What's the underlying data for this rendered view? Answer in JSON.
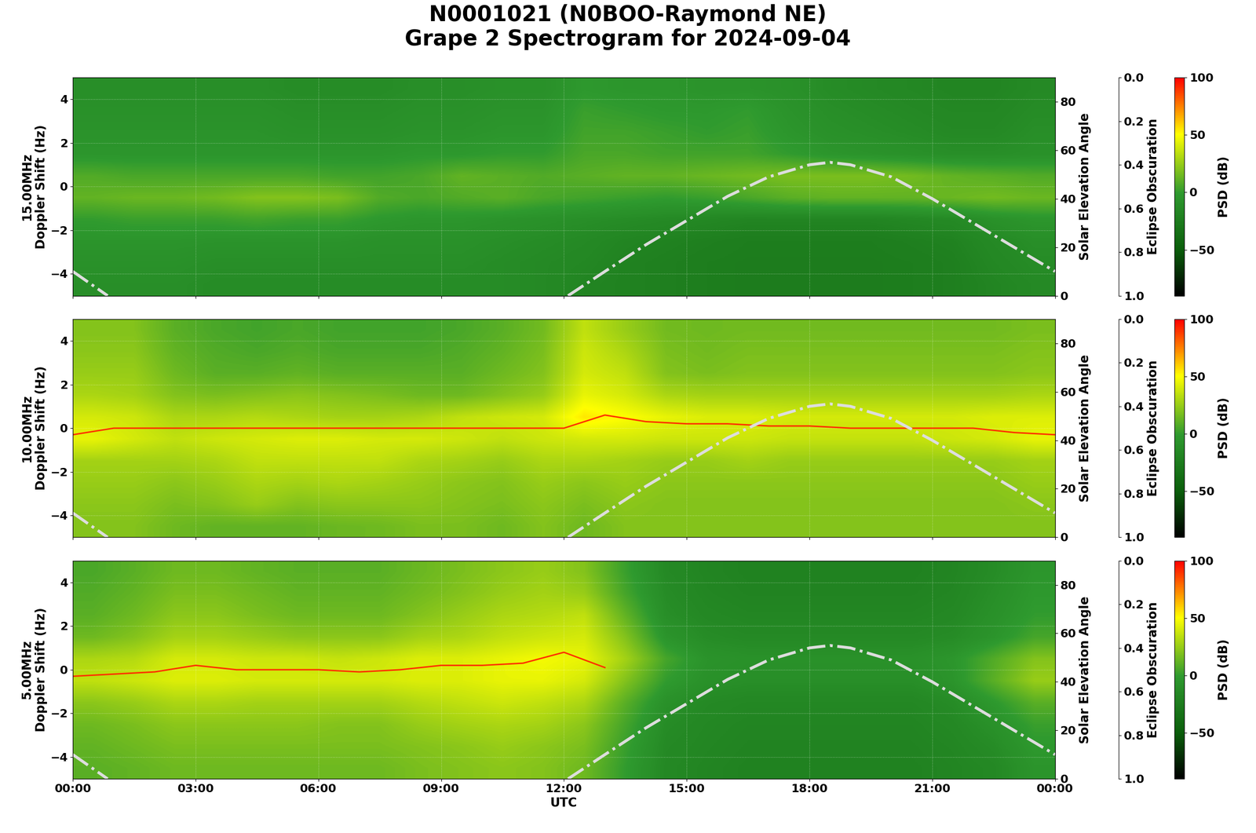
{
  "chart_data": {
    "type": "spectrogram",
    "title": "N0001021 (N0BOO-Raymond NE)\nGrape 2 Spectrogram for 2024-09-04",
    "xlabel": "UTC",
    "xlim": [
      0,
      24
    ],
    "xticks": [
      {
        "value": 0,
        "label": "00:00"
      },
      {
        "value": 3,
        "label": "03:00"
      },
      {
        "value": 6,
        "label": "06:00"
      },
      {
        "value": 9,
        "label": "09:00"
      },
      {
        "value": 12,
        "label": "12:00"
      },
      {
        "value": 15,
        "label": "15:00"
      },
      {
        "value": 18,
        "label": "18:00"
      },
      {
        "value": 21,
        "label": "21:00"
      },
      {
        "value": 24,
        "label": "00:00"
      }
    ],
    "ylim": [
      -5,
      5
    ],
    "yticks": [
      {
        "value": -4,
        "label": "−4"
      },
      {
        "value": -2,
        "label": "−2"
      },
      0,
      2,
      4
    ],
    "grid": true,
    "time_bins": [
      0,
      1,
      2,
      3,
      4,
      5,
      6,
      7,
      8,
      9,
      10,
      11,
      12,
      13,
      14,
      15,
      16,
      17,
      18,
      19,
      20,
      21,
      22,
      23,
      24
    ],
    "doppler_bins": [
      -5,
      -4,
      -3,
      -2,
      -1,
      0,
      1,
      2,
      3,
      4,
      5
    ],
    "colorbar": {
      "label": "PSD (dB)",
      "lim": [
        -90,
        100
      ],
      "ticks": [
        {
          "value": -50,
          "label": "−50"
        },
        0,
        50,
        100
      ]
    },
    "solar": {
      "label": "Solar Elevation Angle",
      "y2lim": [
        0,
        90
      ],
      "y2ticks": [
        0,
        20,
        40,
        60,
        80
      ],
      "color": "#dddddd",
      "line_style": "dashdot",
      "x": [
        0,
        0.85,
        6,
        12.1,
        13,
        14,
        15,
        16,
        17,
        18,
        18.5,
        19,
        20,
        21,
        22,
        23,
        24
      ],
      "values": [
        10,
        0,
        null,
        0,
        10,
        21,
        31,
        41,
        49,
        54,
        55,
        54,
        49,
        40,
        30,
        20,
        10
      ]
    },
    "obscuration": {
      "label": "Eclipse Obscuration",
      "lim": [
        1.0,
        0.0
      ],
      "ticks": [
        0.0,
        0.2,
        0.4,
        0.6,
        0.8,
        1.0
      ]
    },
    "panels": [
      {
        "ylabel": "15.00MHz\nDoppler Shift (Hz)",
        "cells": [
          [
            -10,
            -10,
            -10,
            -12,
            -12,
            -12,
            -12,
            -12,
            -12,
            -12,
            -12,
            -14,
            -18,
            -20,
            -22,
            -24,
            -25,
            -25,
            -25,
            -25,
            -24,
            -22,
            -18,
            -14
          ],
          [
            -8,
            -8,
            -8,
            -10,
            -10,
            -10,
            -10,
            -10,
            -10,
            -10,
            -12,
            -14,
            -16,
            -20,
            -22,
            -24,
            -25,
            -25,
            -25,
            -25,
            -24,
            -22,
            -16,
            -12
          ],
          [
            -5,
            -5,
            -5,
            -6,
            -6,
            -6,
            -6,
            -8,
            -8,
            -8,
            -10,
            -12,
            -14,
            -18,
            -20,
            -22,
            -24,
            -24,
            -24,
            -24,
            -22,
            -20,
            -14,
            -10
          ],
          [
            0,
            2,
            2,
            2,
            4,
            2,
            2,
            -2,
            -4,
            -4,
            -6,
            -8,
            -10,
            -12,
            -14,
            -16,
            -18,
            -18,
            -18,
            -18,
            -16,
            -14,
            -8,
            -4
          ],
          [
            12,
            14,
            14,
            16,
            20,
            20,
            18,
            8,
            6,
            8,
            10,
            6,
            4,
            2,
            0,
            2,
            6,
            10,
            12,
            12,
            12,
            14,
            16,
            14
          ],
          [
            8,
            6,
            6,
            6,
            6,
            6,
            4,
            4,
            6,
            12,
            10,
            8,
            10,
            12,
            12,
            14,
            16,
            18,
            18,
            18,
            16,
            12,
            10,
            8
          ],
          [
            -4,
            -4,
            -4,
            -4,
            -4,
            -4,
            -4,
            -4,
            -2,
            -2,
            0,
            0,
            6,
            6,
            4,
            4,
            4,
            0,
            -4,
            -6,
            -8,
            -10,
            -10,
            -8
          ],
          [
            -6,
            -6,
            -6,
            -6,
            -6,
            -8,
            -8,
            -8,
            -6,
            -6,
            -4,
            -4,
            4,
            4,
            2,
            0,
            2,
            -4,
            -8,
            -10,
            -12,
            -14,
            -14,
            -10
          ],
          [
            -8,
            -8,
            -8,
            -8,
            -8,
            -10,
            -10,
            -10,
            -8,
            -8,
            -6,
            -6,
            2,
            0,
            -2,
            -2,
            0,
            -6,
            -10,
            -12,
            -14,
            -16,
            -16,
            -12
          ],
          [
            -10,
            -10,
            -10,
            -10,
            -10,
            -12,
            -12,
            -12,
            -10,
            -10,
            -8,
            -8,
            -2,
            -4,
            -4,
            -6,
            -6,
            -8,
            -12,
            -14,
            -16,
            -18,
            -18,
            -14
          ]
        ],
        "trace": null
      },
      {
        "ylabel": "10.00MHz\nDoppler Shift (Hz)",
        "cells": [
          [
            20,
            20,
            15,
            12,
            12,
            12,
            14,
            15,
            18,
            18,
            15,
            20,
            15,
            20,
            20,
            20,
            20,
            20,
            20,
            20,
            20,
            20,
            20,
            20
          ],
          [
            22,
            22,
            18,
            20,
            25,
            20,
            22,
            22,
            22,
            20,
            18,
            22,
            18,
            22,
            20,
            20,
            20,
            20,
            20,
            20,
            20,
            20,
            20,
            22
          ],
          [
            25,
            25,
            22,
            25,
            30,
            28,
            30,
            28,
            25,
            22,
            20,
            25,
            22,
            25,
            22,
            22,
            22,
            22,
            22,
            22,
            22,
            22,
            22,
            25
          ],
          [
            28,
            28,
            28,
            30,
            35,
            35,
            35,
            35,
            30,
            28,
            25,
            30,
            30,
            28,
            25,
            25,
            28,
            25,
            25,
            25,
            25,
            25,
            25,
            28
          ],
          [
            45,
            40,
            35,
            38,
            40,
            42,
            42,
            40,
            40,
            38,
            35,
            38,
            40,
            40,
            38,
            38,
            38,
            36,
            36,
            36,
            36,
            38,
            40,
            45
          ],
          [
            40,
            38,
            30,
            30,
            32,
            30,
            28,
            28,
            30,
            35,
            38,
            40,
            55,
            50,
            45,
            42,
            42,
            40,
            40,
            40,
            40,
            40,
            42,
            42
          ],
          [
            30,
            28,
            20,
            18,
            20,
            22,
            20,
            18,
            15,
            15,
            20,
            25,
            45,
            40,
            30,
            28,
            28,
            28,
            28,
            28,
            28,
            28,
            28,
            30
          ],
          [
            25,
            25,
            15,
            10,
            10,
            12,
            10,
            10,
            10,
            10,
            15,
            20,
            40,
            35,
            20,
            18,
            20,
            20,
            20,
            20,
            20,
            20,
            20,
            22
          ],
          [
            22,
            22,
            12,
            8,
            6,
            8,
            6,
            6,
            6,
            8,
            12,
            18,
            38,
            30,
            18,
            16,
            18,
            18,
            18,
            18,
            18,
            18,
            18,
            20
          ],
          [
            20,
            20,
            10,
            6,
            4,
            6,
            4,
            4,
            4,
            6,
            10,
            16,
            35,
            25,
            16,
            15,
            16,
            16,
            16,
            16,
            16,
            16,
            16,
            18
          ]
        ],
        "trace": {
          "color": "#ff3000",
          "x": [
            0,
            1,
            2,
            3,
            4,
            5,
            6,
            7,
            8,
            9,
            10,
            11,
            12,
            13,
            14,
            15,
            16,
            17,
            18,
            19,
            20,
            21,
            22,
            23,
            24
          ],
          "values": [
            -0.3,
            0.0,
            0,
            0,
            0,
            0,
            0,
            0,
            0,
            0,
            0,
            0,
            0,
            0.6,
            0.3,
            0.2,
            0.2,
            0.1,
            0.1,
            0.0,
            0.0,
            0.0,
            0.0,
            -0.2,
            -0.3
          ]
        }
      },
      {
        "ylabel": "5.00MHz\nDoppler Shift (Hz)",
        "cells": [
          [
            10,
            12,
            15,
            15,
            15,
            15,
            15,
            15,
            18,
            20,
            22,
            20,
            15,
            0,
            -15,
            -18,
            -20,
            -20,
            -20,
            -20,
            -20,
            -18,
            -15,
            -5
          ],
          [
            12,
            15,
            18,
            18,
            18,
            18,
            18,
            18,
            20,
            22,
            25,
            22,
            18,
            2,
            -14,
            -17,
            -19,
            -19,
            -19,
            -19,
            -19,
            -17,
            -12,
            -2
          ],
          [
            15,
            18,
            22,
            22,
            22,
            22,
            20,
            20,
            25,
            28,
            30,
            28,
            22,
            5,
            -12,
            -16,
            -18,
            -18,
            -18,
            -18,
            -18,
            -15,
            -8,
            2
          ],
          [
            22,
            25,
            30,
            30,
            28,
            28,
            28,
            28,
            32,
            35,
            38,
            35,
            30,
            10,
            -8,
            -14,
            -16,
            -16,
            -16,
            -16,
            -16,
            -12,
            -2,
            10
          ],
          [
            35,
            38,
            42,
            42,
            40,
            40,
            40,
            40,
            42,
            42,
            45,
            45,
            40,
            20,
            0,
            -8,
            -10,
            -10,
            -10,
            -10,
            -10,
            -5,
            10,
            25
          ],
          [
            30,
            32,
            40,
            40,
            38,
            38,
            36,
            38,
            42,
            42,
            45,
            48,
            45,
            28,
            5,
            -6,
            -8,
            -8,
            -8,
            -8,
            -8,
            -4,
            8,
            20
          ],
          [
            15,
            20,
            28,
            28,
            25,
            22,
            22,
            22,
            28,
            30,
            35,
            38,
            40,
            20,
            -5,
            -12,
            -14,
            -14,
            -14,
            -14,
            -14,
            -12,
            -5,
            5
          ],
          [
            10,
            15,
            22,
            22,
            18,
            15,
            15,
            15,
            20,
            25,
            30,
            32,
            35,
            12,
            -10,
            -15,
            -17,
            -17,
            -17,
            -17,
            -17,
            -15,
            -8,
            0
          ],
          [
            8,
            12,
            18,
            18,
            15,
            12,
            12,
            12,
            16,
            20,
            25,
            28,
            25,
            5,
            -12,
            -17,
            -19,
            -19,
            -19,
            -19,
            -19,
            -17,
            -10,
            -2
          ],
          [
            6,
            10,
            15,
            15,
            12,
            10,
            10,
            10,
            14,
            18,
            22,
            25,
            20,
            2,
            -14,
            -18,
            -20,
            -20,
            -20,
            -20,
            -20,
            -18,
            -12,
            -4
          ]
        ],
        "trace": {
          "color": "#ff3000",
          "x": [
            0,
            1,
            2,
            3,
            4,
            5,
            6,
            7,
            8,
            9,
            10,
            11,
            12,
            13,
            14,
            15,
            16,
            17,
            18,
            19,
            20,
            21,
            22,
            23,
            24
          ],
          "values": [
            -0.3,
            -0.2,
            -0.1,
            0.2,
            0.0,
            0.0,
            0.0,
            -0.1,
            0.0,
            0.2,
            0.2,
            0.3,
            0.8,
            0.1,
            null,
            null,
            null,
            null,
            null,
            null,
            null,
            null,
            null,
            null,
            null
          ]
        }
      }
    ]
  }
}
